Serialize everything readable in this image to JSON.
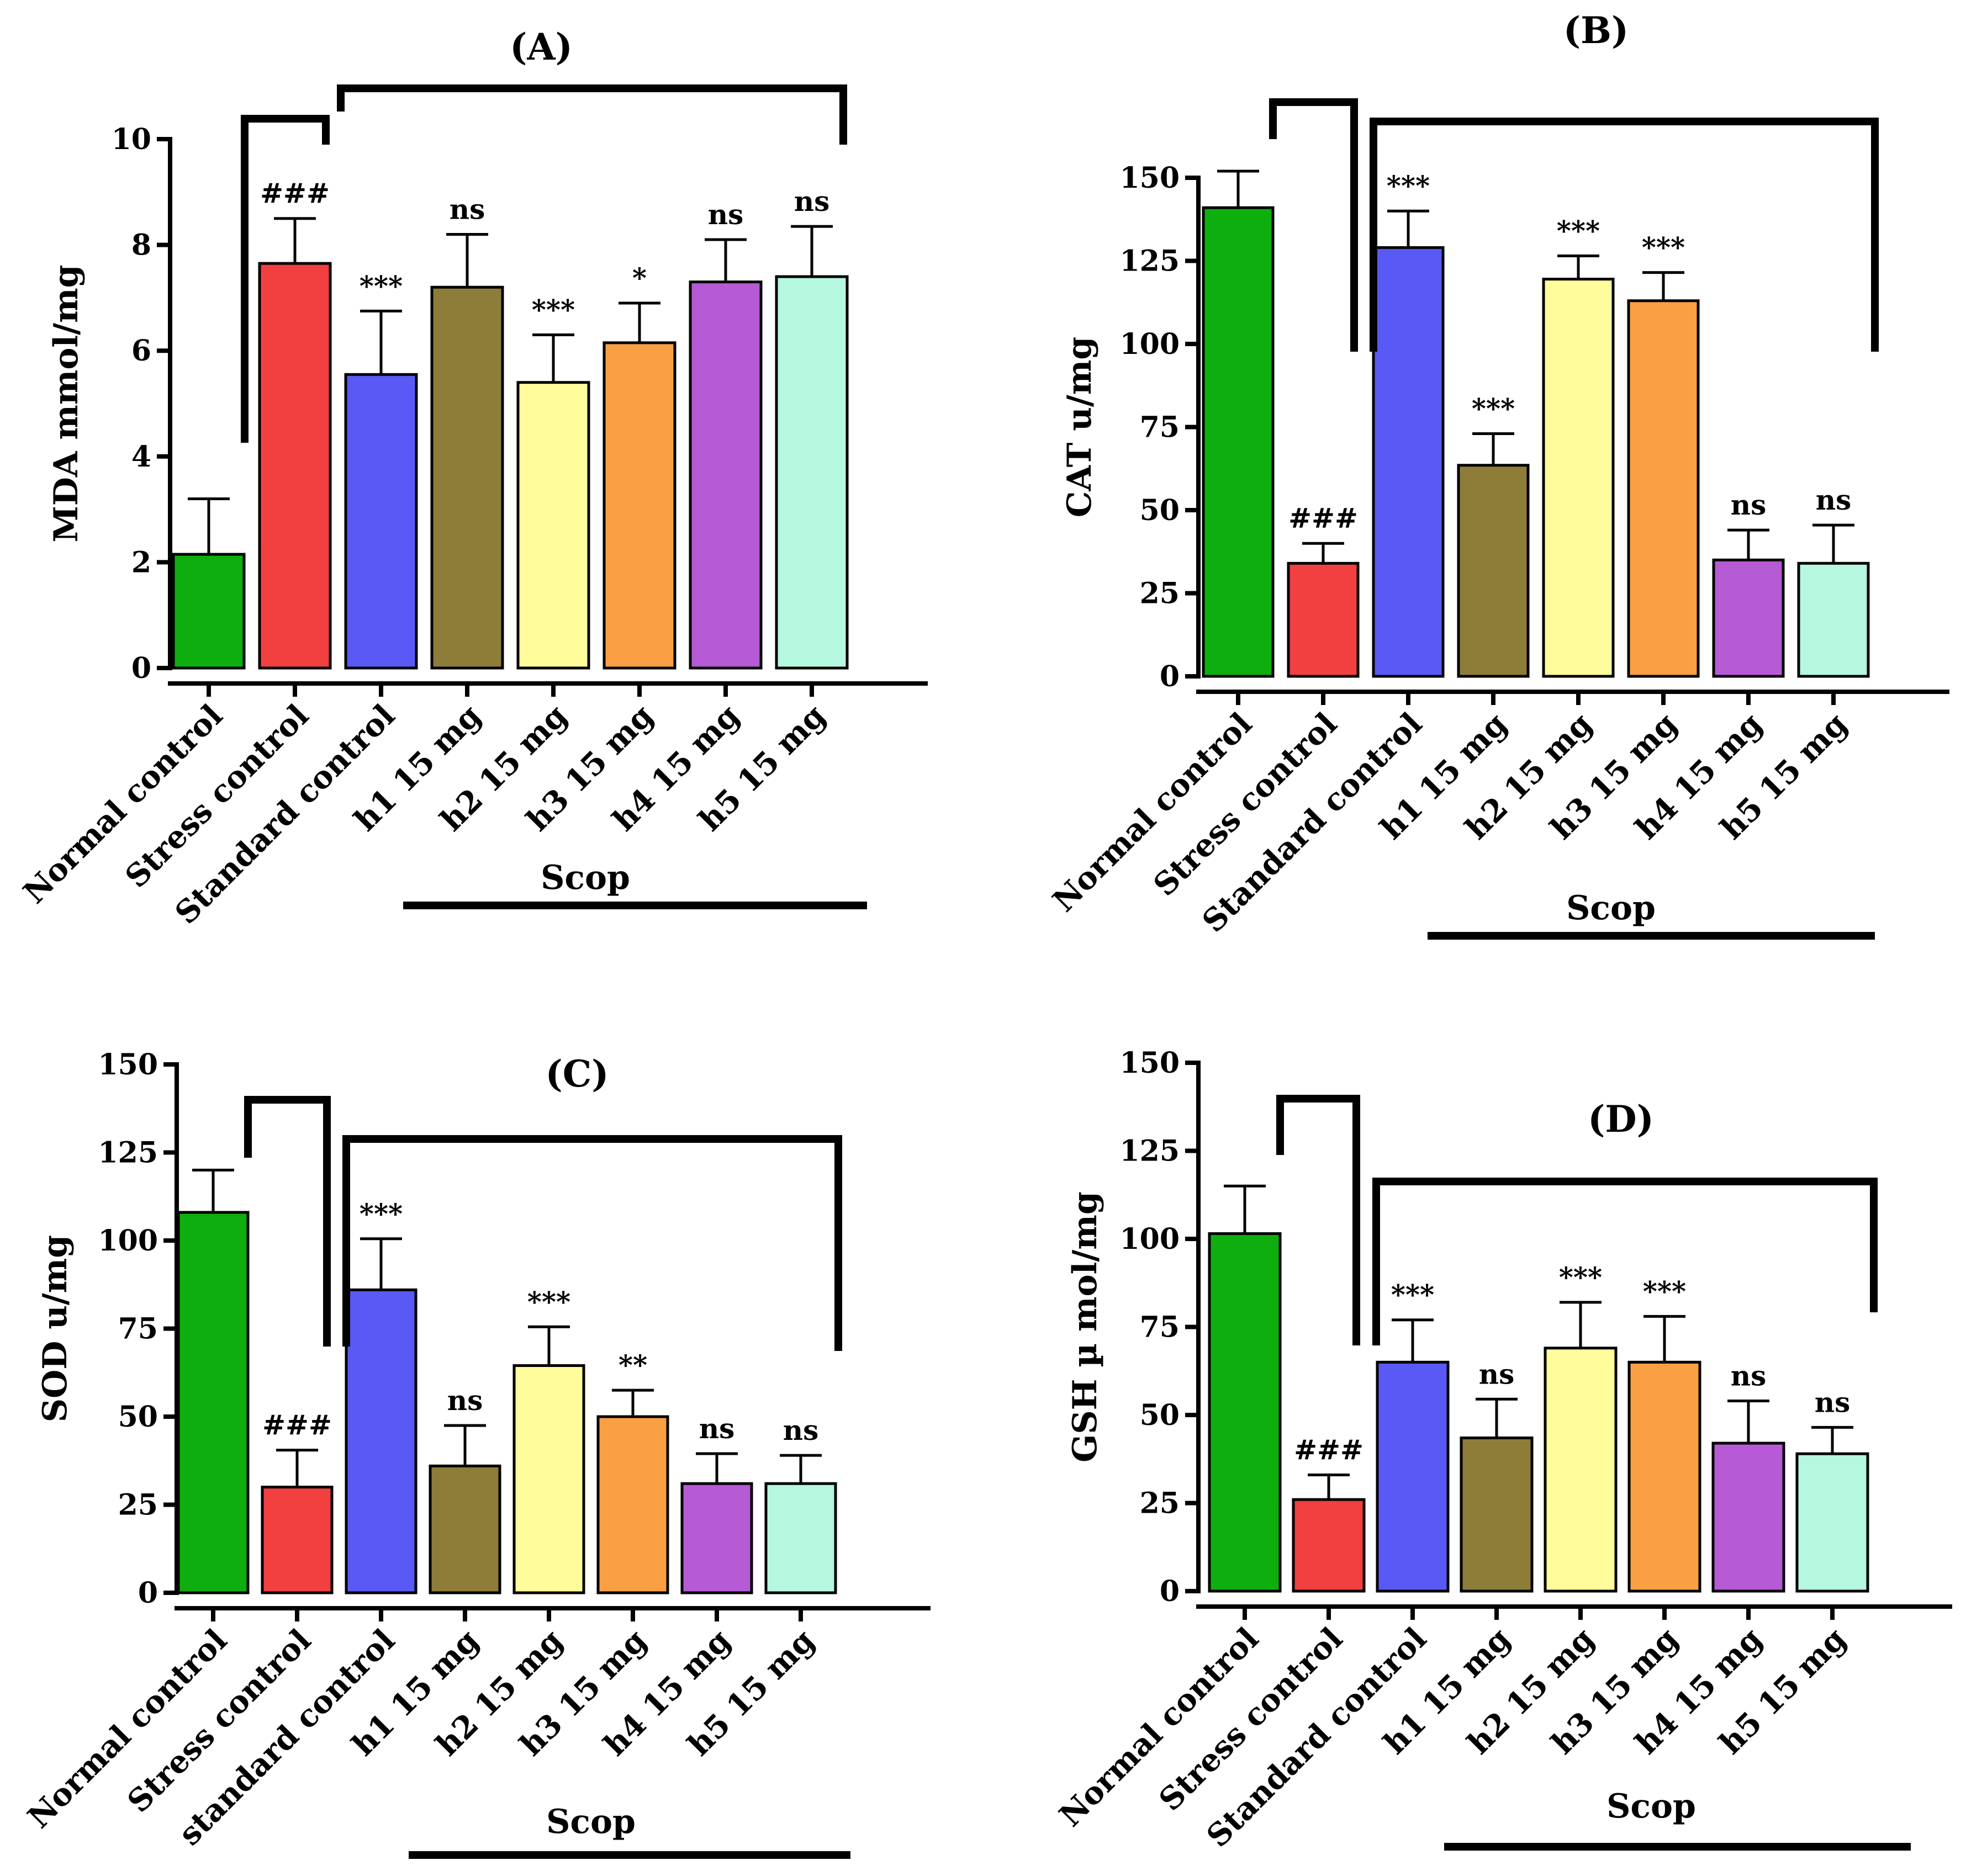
{
  "chart_data": [
    {
      "panel": "A",
      "type": "bar",
      "title": "(A)",
      "ylabel": "MDA mmol/mg",
      "ylim": [
        0,
        10
      ],
      "yticks": [
        0,
        2,
        4,
        6,
        8,
        10
      ],
      "categories": [
        "Normal control",
        "Stress control",
        "Standard control",
        "h1 15 mg",
        "h2 15 mg",
        "h3 15 mg",
        "h4 15 mg",
        "h5 15 mg"
      ],
      "values": [
        2.15,
        7.65,
        5.55,
        7.2,
        5.4,
        6.15,
        7.3,
        7.4
      ],
      "errors": [
        1.05,
        0.85,
        1.2,
        1.0,
        0.9,
        0.75,
        0.8,
        0.95
      ],
      "annotations": [
        "",
        "###",
        "***",
        "ns",
        "***",
        "*",
        "ns",
        "ns"
      ],
      "group_label": "Scop"
    },
    {
      "panel": "B",
      "type": "bar",
      "title": "(B)",
      "ylabel": "CAT u/mg",
      "ylim": [
        0,
        150
      ],
      "yticks": [
        0,
        25,
        50,
        75,
        100,
        125,
        150
      ],
      "categories": [
        "Normal control",
        "Stress control",
        "Standard control",
        "h1 15 mg",
        "h2 15 mg",
        "h3 15 mg",
        "h4 15 mg",
        "h5 15 mg"
      ],
      "values": [
        141,
        34,
        129,
        63.5,
        119.5,
        113,
        35,
        34
      ],
      "errors": [
        11,
        6,
        11,
        9.5,
        7,
        8.5,
        9,
        11.5
      ],
      "annotations": [
        "",
        "###",
        "***",
        "***",
        "***",
        "***",
        "ns",
        "ns"
      ],
      "group_label": "Scop"
    },
    {
      "panel": "C",
      "type": "bar",
      "title": "(C)",
      "ylabel": "SOD u/mg",
      "ylim": [
        0,
        150
      ],
      "yticks": [
        0,
        25,
        50,
        75,
        100,
        125,
        150
      ],
      "categories": [
        "Normal control",
        "Stress control",
        "standard control",
        "h1 15 mg",
        "h2 15 mg",
        "h3 15 mg",
        "h4 15 mg",
        "h5 15 mg"
      ],
      "values": [
        108,
        30,
        86,
        36,
        64.5,
        50,
        31,
        31
      ],
      "errors": [
        12,
        10.5,
        14.5,
        11.5,
        11,
        7.5,
        8.5,
        8
      ],
      "annotations": [
        "",
        "###",
        "***",
        "ns",
        "***",
        "**",
        "ns",
        "ns"
      ],
      "group_label": "Scop"
    },
    {
      "panel": "D",
      "type": "bar",
      "title": "(D)",
      "ylabel": "GSH µ mol/mg",
      "ylim": [
        0,
        150
      ],
      "yticks": [
        0,
        25,
        50,
        75,
        100,
        125,
        150
      ],
      "categories": [
        "Normal control",
        "Stress control",
        "Standard control",
        "h1 15 mg",
        "h2 15 mg",
        "h3 15 mg",
        "h4 15 mg",
        "h5 15 mg"
      ],
      "values": [
        101.5,
        26,
        65,
        43.5,
        69,
        65,
        42,
        39
      ],
      "errors": [
        13.5,
        7,
        12,
        11,
        13,
        13,
        12,
        7.5
      ],
      "annotations": [
        "",
        "###",
        "***",
        "ns",
        "***",
        "***",
        "ns",
        "ns"
      ],
      "group_label": "Scop"
    }
  ],
  "colors": [
    "#0fae0f",
    "#f24040",
    "#5959f5",
    "#8e7c39",
    "#fffc9c",
    "#fa9f43",
    "#b65ad5",
    "#b5f7df"
  ]
}
